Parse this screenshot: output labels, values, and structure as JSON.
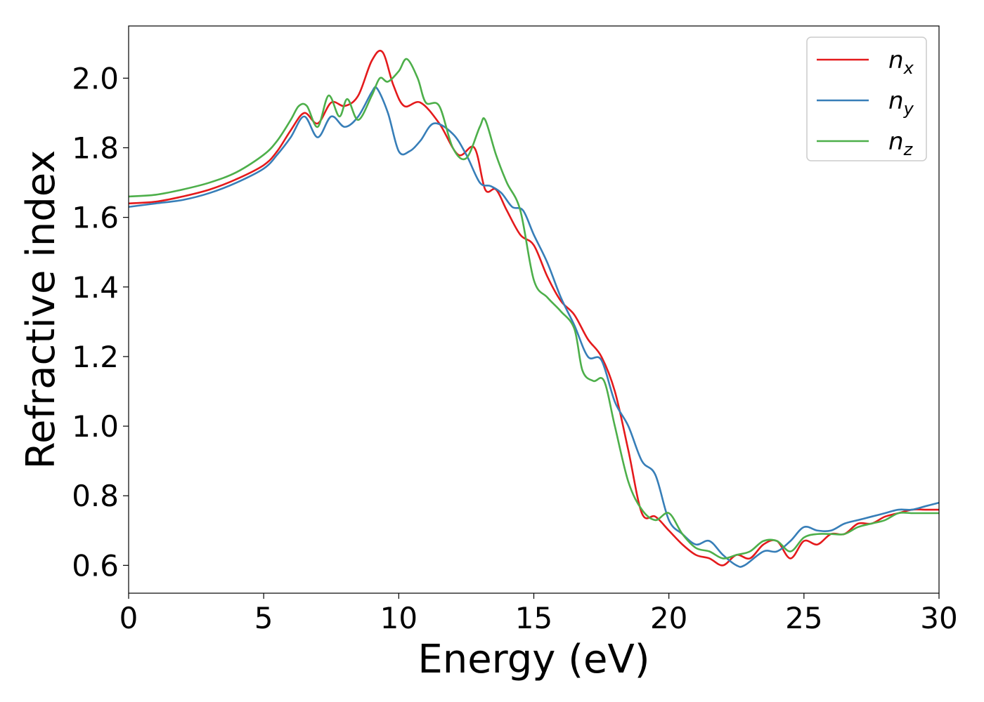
{
  "chart_data": {
    "type": "line",
    "xlabel": "Energy (eV)",
    "ylabel": "Refractive index",
    "xlim": [
      0,
      30
    ],
    "ylim": [
      0.52,
      2.15
    ],
    "xticks": [
      0,
      5,
      10,
      15,
      20,
      25,
      30
    ],
    "yticks": [
      0.6,
      0.8,
      1.0,
      1.2,
      1.4,
      1.6,
      1.8,
      2.0
    ],
    "xtick_labels": [
      "0",
      "5",
      "10",
      "15",
      "20",
      "25",
      "30"
    ],
    "ytick_labels": [
      "0.6",
      "0.8",
      "1.0",
      "1.2",
      "1.4",
      "1.6",
      "1.8",
      "2.0"
    ],
    "grid": false,
    "legend_position": "top-right",
    "series": [
      {
        "name": "n",
        "subscript": "x",
        "color": "#e41a1c",
        "x": [
          0,
          1,
          2,
          3,
          4,
          5,
          5.5,
          6,
          6.5,
          7,
          7.5,
          8,
          8.5,
          9,
          9.4,
          9.8,
          10.2,
          10.8,
          11.5,
          12.2,
          12.8,
          13.2,
          13.6,
          14,
          14.5,
          15,
          15.5,
          16,
          16.5,
          17,
          17.5,
          18,
          18.5,
          19,
          19.5,
          20,
          20.5,
          21,
          21.5,
          22,
          22.5,
          23,
          23.5,
          24,
          24.5,
          25,
          25.5,
          26,
          26.5,
          27,
          27.5,
          28,
          28.5,
          29,
          29.5,
          30
        ],
        "y": [
          1.64,
          1.645,
          1.66,
          1.68,
          1.71,
          1.75,
          1.79,
          1.85,
          1.9,
          1.87,
          1.93,
          1.92,
          1.95,
          2.05,
          2.075,
          1.98,
          1.92,
          1.93,
          1.87,
          1.78,
          1.8,
          1.68,
          1.68,
          1.62,
          1.55,
          1.52,
          1.43,
          1.36,
          1.32,
          1.25,
          1.2,
          1.1,
          0.93,
          0.75,
          0.74,
          0.7,
          0.66,
          0.63,
          0.62,
          0.6,
          0.63,
          0.62,
          0.66,
          0.67,
          0.62,
          0.67,
          0.66,
          0.69,
          0.69,
          0.72,
          0.72,
          0.74,
          0.75,
          0.76,
          0.76,
          0.76
        ]
      },
      {
        "name": "n",
        "subscript": "y",
        "color": "#377eb8",
        "x": [
          0,
          1,
          2,
          3,
          4,
          5,
          5.5,
          6,
          6.5,
          7,
          7.5,
          8,
          8.5,
          9,
          9.2,
          9.6,
          10,
          10.4,
          10.8,
          11.3,
          12,
          12.5,
          13,
          13.4,
          13.8,
          14.2,
          14.6,
          15,
          15.5,
          16,
          16.5,
          17,
          17.5,
          18,
          18.5,
          19,
          19.5,
          20,
          20.5,
          21,
          21.5,
          22,
          22.5,
          22.8,
          23.5,
          24,
          24.5,
          25,
          25.5,
          26,
          26.5,
          27,
          27.5,
          28,
          28.5,
          29,
          29.5,
          30
        ],
        "y": [
          1.63,
          1.64,
          1.65,
          1.67,
          1.7,
          1.74,
          1.78,
          1.83,
          1.89,
          1.83,
          1.89,
          1.86,
          1.89,
          1.96,
          1.97,
          1.9,
          1.79,
          1.79,
          1.82,
          1.87,
          1.84,
          1.78,
          1.7,
          1.69,
          1.67,
          1.63,
          1.62,
          1.55,
          1.47,
          1.37,
          1.29,
          1.2,
          1.19,
          1.07,
          1.0,
          0.9,
          0.86,
          0.73,
          0.69,
          0.66,
          0.67,
          0.63,
          0.6,
          0.6,
          0.64,
          0.64,
          0.67,
          0.71,
          0.7,
          0.7,
          0.72,
          0.73,
          0.74,
          0.75,
          0.76,
          0.76,
          0.77,
          0.78
        ]
      },
      {
        "name": "n",
        "subscript": "z",
        "color": "#4daf4a",
        "x": [
          0,
          1,
          2,
          3,
          4,
          5,
          5.5,
          6,
          6.3,
          6.6,
          7,
          7.4,
          7.8,
          8.1,
          8.5,
          9,
          9.3,
          9.6,
          10,
          10.3,
          10.7,
          11,
          11.5,
          12,
          12.5,
          13,
          13.2,
          13.6,
          14,
          14.5,
          15,
          15.5,
          16,
          16.5,
          16.8,
          17.2,
          17.6,
          18,
          18.5,
          19,
          19.5,
          20,
          20.5,
          21,
          21.5,
          22,
          22.5,
          23,
          23.5,
          24,
          24.5,
          25,
          25.5,
          26,
          26.5,
          27,
          27.5,
          28,
          28.5,
          29,
          29.5,
          30
        ],
        "y": [
          1.66,
          1.665,
          1.68,
          1.7,
          1.73,
          1.78,
          1.82,
          1.88,
          1.92,
          1.92,
          1.86,
          1.95,
          1.89,
          1.94,
          1.88,
          1.95,
          2.0,
          1.99,
          2.02,
          2.055,
          2.0,
          1.93,
          1.92,
          1.8,
          1.77,
          1.86,
          1.88,
          1.78,
          1.7,
          1.62,
          1.42,
          1.37,
          1.33,
          1.28,
          1.16,
          1.13,
          1.13,
          1.0,
          0.84,
          0.76,
          0.73,
          0.75,
          0.69,
          0.65,
          0.64,
          0.62,
          0.63,
          0.64,
          0.67,
          0.67,
          0.64,
          0.68,
          0.69,
          0.69,
          0.69,
          0.71,
          0.72,
          0.73,
          0.75,
          0.75,
          0.75,
          0.75
        ]
      }
    ]
  }
}
